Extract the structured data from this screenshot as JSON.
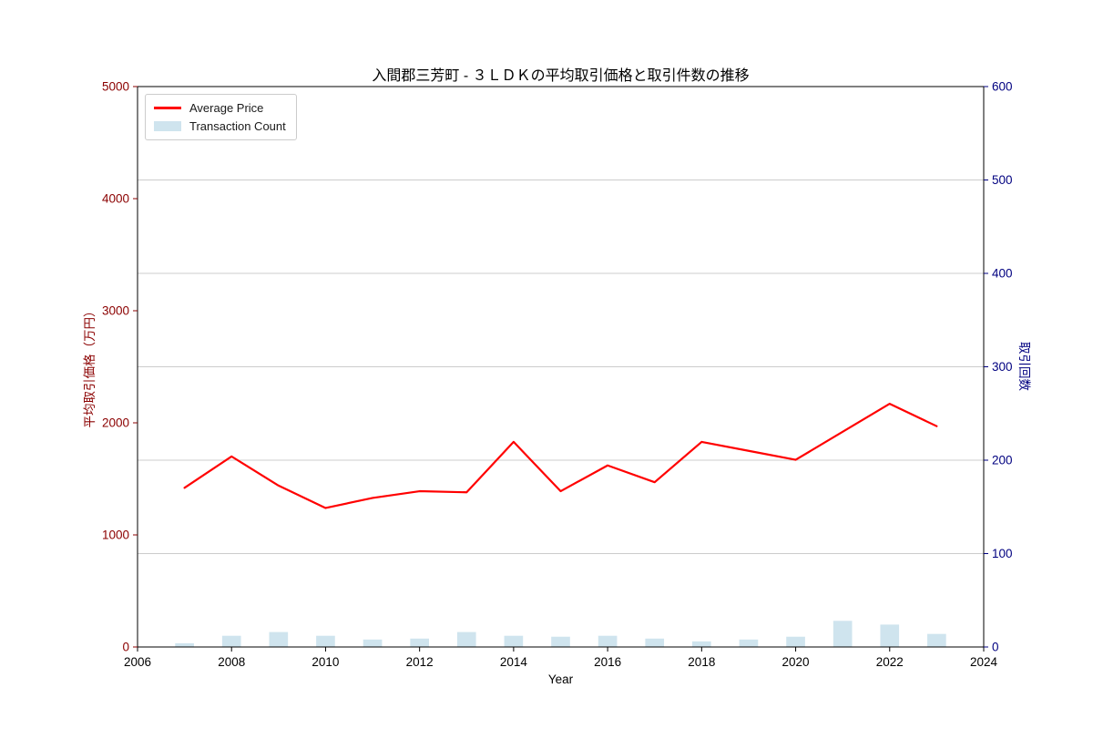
{
  "chart_data": {
    "type": "line+bar",
    "title": "入間郡三芳町 - ３ＬＤＫの平均取引価格と取引件数の推移",
    "xlabel": "Year",
    "x": [
      2007,
      2008,
      2009,
      2010,
      2011,
      2012,
      2013,
      2014,
      2015,
      2016,
      2017,
      2018,
      2019,
      2020,
      2021,
      2022,
      2023
    ],
    "series": [
      {
        "name": "Average Price",
        "type": "line",
        "axis": "left",
        "color": "#ff0000",
        "values": [
          1420,
          1700,
          1440,
          1240,
          1330,
          1390,
          1380,
          1830,
          1390,
          1620,
          1470,
          1830,
          1750,
          1670,
          1920,
          2170,
          1970
        ]
      },
      {
        "name": "Transaction Count",
        "type": "bar",
        "axis": "right",
        "color": "#cfe4ee",
        "values": [
          4,
          12,
          16,
          12,
          8,
          9,
          16,
          12,
          11,
          12,
          9,
          6,
          8,
          11,
          28,
          24,
          14
        ]
      }
    ],
    "bar_width_years": 0.4,
    "x_axis": {
      "range": [
        2006,
        2024
      ],
      "ticks": [
        2006,
        2008,
        2010,
        2012,
        2014,
        2016,
        2018,
        2020,
        2022,
        2024
      ],
      "color": "#000000"
    },
    "left_axis": {
      "label": "平均取引価格（万円）",
      "range": [
        0,
        5000
      ],
      "ticks": [
        0,
        1000,
        2000,
        3000,
        4000,
        5000
      ],
      "color": "#8b0000"
    },
    "right_axis": {
      "label": "取引回数",
      "range": [
        0,
        600
      ],
      "ticks": [
        0,
        100,
        200,
        300,
        400,
        500,
        600
      ],
      "color": "#000080"
    },
    "grid": {
      "show": true,
      "source": "right-axis",
      "color": "#cccccc"
    },
    "legend_position": "upper-left"
  }
}
